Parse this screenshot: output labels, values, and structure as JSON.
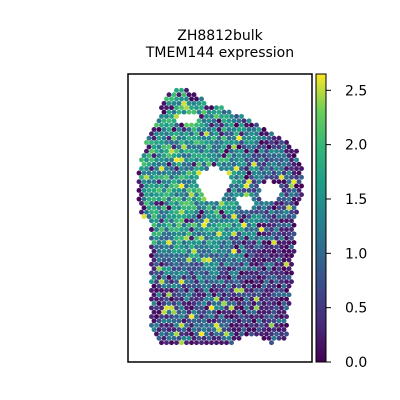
{
  "chart_data": {
    "type": "scatter",
    "title_line1": "ZH8812bulk",
    "title_line2": "TMEM144 expression",
    "xlabel": "",
    "ylabel": "",
    "color_scale": "viridis",
    "color_range": [
      0.0,
      2.65
    ],
    "colorbar_ticks": [
      "0.0",
      "0.5",
      "1.0",
      "1.5",
      "2.0",
      "2.5"
    ],
    "colorbar_tick_values": [
      0.0,
      0.5,
      1.0,
      1.5,
      2.0,
      2.5
    ],
    "axes_ticks_shown": false,
    "grid": false,
    "spot_count_approx": 1900,
    "tissue_regions": {
      "upper_mean_expression": 1.6,
      "lower_right_mean_expression": 0.6
    }
  },
  "colors": {
    "frame": "#000000",
    "background": "#ffffff"
  }
}
